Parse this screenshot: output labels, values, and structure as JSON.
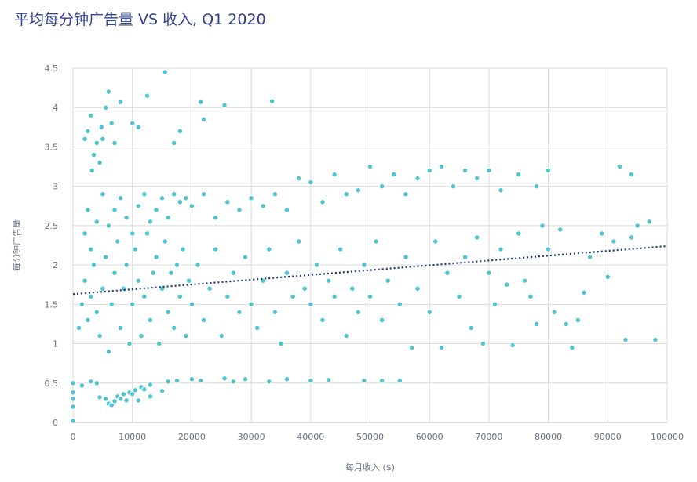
{
  "chart_data": {
    "type": "scatter",
    "title": "平均每分钟广告量 VS 收入, Q1 2020",
    "xlabel": "每月收入 ($)",
    "ylabel": "每分钟广告量",
    "xlim": [
      0,
      100000
    ],
    "ylim": [
      0,
      4.5
    ],
    "xticks": [
      "0",
      "10000",
      "20000",
      "30000",
      "40000",
      "50000",
      "60000",
      "70000",
      "80000",
      "90000",
      "100000"
    ],
    "yticks": [
      "0",
      "0.5",
      "1",
      "1.5",
      "2",
      "2.5",
      "3",
      "3.5",
      "4",
      "4.5"
    ],
    "grid": true,
    "point_color": "#4fc3cf",
    "trend_color": "#1f3a7a",
    "trendline": {
      "type": "linear",
      "x": [
        0,
        100000
      ],
      "y": [
        1.63,
        2.24
      ]
    },
    "points": [
      [
        0,
        0.02
      ],
      [
        0,
        0.2
      ],
      [
        0,
        0.3
      ],
      [
        0,
        0.38
      ],
      [
        0,
        0.5
      ],
      [
        1500,
        0.47
      ],
      [
        3000,
        0.52
      ],
      [
        4000,
        0.5
      ],
      [
        4500,
        0.32
      ],
      [
        5500,
        0.3
      ],
      [
        6000,
        0.24
      ],
      [
        6500,
        0.22
      ],
      [
        7000,
        0.27
      ],
      [
        7500,
        0.33
      ],
      [
        8000,
        0.3
      ],
      [
        8500,
        0.36
      ],
      [
        9000,
        0.28
      ],
      [
        9500,
        0.38
      ],
      [
        10000,
        0.36
      ],
      [
        10500,
        0.41
      ],
      [
        11000,
        0.28
      ],
      [
        11500,
        0.45
      ],
      [
        12000,
        0.42
      ],
      [
        13000,
        0.33
      ],
      [
        13000,
        0.48
      ],
      [
        15000,
        0.4
      ],
      [
        16000,
        0.52
      ],
      [
        17500,
        0.53
      ],
      [
        20000,
        0.55
      ],
      [
        21500,
        0.53
      ],
      [
        25500,
        0.56
      ],
      [
        27000,
        0.52
      ],
      [
        29000,
        0.55
      ],
      [
        33000,
        0.52
      ],
      [
        36000,
        0.55
      ],
      [
        40000,
        0.53
      ],
      [
        43000,
        0.54
      ],
      [
        49000,
        0.53
      ],
      [
        52000,
        0.53
      ],
      [
        55000,
        0.53
      ],
      [
        2000,
        3.6
      ],
      [
        2500,
        3.7
      ],
      [
        3000,
        3.9
      ],
      [
        3500,
        3.4
      ],
      [
        4000,
        3.55
      ],
      [
        4500,
        3.3
      ],
      [
        5000,
        3.6
      ],
      [
        5500,
        4.0
      ],
      [
        6000,
        4.2
      ],
      [
        6500,
        3.8
      ],
      [
        3200,
        3.2
      ],
      [
        4800,
        3.75
      ],
      [
        7000,
        3.55
      ],
      [
        8000,
        4.07
      ],
      [
        10000,
        3.8
      ],
      [
        11000,
        3.75
      ],
      [
        12500,
        4.15
      ],
      [
        15500,
        4.45
      ],
      [
        18000,
        3.7
      ],
      [
        21500,
        4.07
      ],
      [
        25500,
        4.03
      ],
      [
        33500,
        4.08
      ],
      [
        22000,
        3.85
      ],
      [
        17000,
        3.55
      ],
      [
        2000,
        2.4
      ],
      [
        2500,
        2.7
      ],
      [
        3000,
        2.2
      ],
      [
        4000,
        2.55
      ],
      [
        5000,
        2.9
      ],
      [
        6000,
        2.5
      ],
      [
        7000,
        2.7
      ],
      [
        8000,
        2.85
      ],
      [
        9000,
        2.6
      ],
      [
        10000,
        2.4
      ],
      [
        11000,
        2.75
      ],
      [
        12000,
        2.9
      ],
      [
        13000,
        2.55
      ],
      [
        14000,
        2.7
      ],
      [
        15000,
        2.85
      ],
      [
        16000,
        2.6
      ],
      [
        17000,
        2.9
      ],
      [
        18000,
        2.8
      ],
      [
        19000,
        2.85
      ],
      [
        20000,
        2.75
      ],
      [
        22000,
        2.9
      ],
      [
        24000,
        2.6
      ],
      [
        26000,
        2.8
      ],
      [
        28000,
        2.7
      ],
      [
        30000,
        2.85
      ],
      [
        32000,
        2.75
      ],
      [
        34000,
        2.9
      ],
      [
        36000,
        2.7
      ],
      [
        38000,
        3.1
      ],
      [
        40000,
        3.05
      ],
      [
        42000,
        2.8
      ],
      [
        44000,
        3.15
      ],
      [
        46000,
        2.9
      ],
      [
        48000,
        2.95
      ],
      [
        50000,
        3.25
      ],
      [
        52000,
        3.0
      ],
      [
        54000,
        3.15
      ],
      [
        56000,
        2.9
      ],
      [
        58000,
        3.1
      ],
      [
        60000,
        3.2
      ],
      [
        62000,
        3.25
      ],
      [
        64000,
        3.0
      ],
      [
        66000,
        3.2
      ],
      [
        68000,
        3.1
      ],
      [
        70000,
        3.2
      ],
      [
        72000,
        2.95
      ],
      [
        75000,
        3.15
      ],
      [
        78000,
        3.0
      ],
      [
        80000,
        3.2
      ],
      [
        92000,
        3.25
      ],
      [
        94000,
        3.15
      ],
      [
        1000,
        1.2
      ],
      [
        1500,
        1.5
      ],
      [
        2000,
        1.8
      ],
      [
        2500,
        1.3
      ],
      [
        3000,
        1.6
      ],
      [
        3500,
        2.0
      ],
      [
        4000,
        1.4
      ],
      [
        4500,
        1.1
      ],
      [
        5000,
        1.7
      ],
      [
        5500,
        2.1
      ],
      [
        6000,
        0.9
      ],
      [
        6500,
        1.5
      ],
      [
        7000,
        1.9
      ],
      [
        7500,
        2.3
      ],
      [
        8000,
        1.2
      ],
      [
        8500,
        1.7
      ],
      [
        9000,
        2.0
      ],
      [
        9500,
        1.0
      ],
      [
        10000,
        1.5
      ],
      [
        10500,
        2.2
      ],
      [
        11000,
        1.8
      ],
      [
        11500,
        1.1
      ],
      [
        12000,
        1.6
      ],
      [
        12500,
        2.4
      ],
      [
        13000,
        1.3
      ],
      [
        13500,
        1.9
      ],
      [
        14000,
        2.1
      ],
      [
        14500,
        1.0
      ],
      [
        15000,
        1.7
      ],
      [
        15500,
        2.3
      ],
      [
        16000,
        1.4
      ],
      [
        16500,
        1.9
      ],
      [
        17000,
        1.2
      ],
      [
        17500,
        2.0
      ],
      [
        18000,
        1.6
      ],
      [
        18500,
        2.2
      ],
      [
        19000,
        1.1
      ],
      [
        19500,
        1.8
      ],
      [
        20000,
        1.5
      ],
      [
        21000,
        2.0
      ],
      [
        22000,
        1.3
      ],
      [
        23000,
        1.7
      ],
      [
        24000,
        2.2
      ],
      [
        25000,
        1.1
      ],
      [
        26000,
        1.6
      ],
      [
        27000,
        1.9
      ],
      [
        28000,
        1.4
      ],
      [
        29000,
        2.1
      ],
      [
        30000,
        1.5
      ],
      [
        31000,
        1.2
      ],
      [
        32000,
        1.8
      ],
      [
        33000,
        2.2
      ],
      [
        34000,
        1.4
      ],
      [
        35000,
        1.0
      ],
      [
        36000,
        1.9
      ],
      [
        37000,
        1.6
      ],
      [
        38000,
        2.3
      ],
      [
        39000,
        1.7
      ],
      [
        40000,
        1.5
      ],
      [
        41000,
        2.0
      ],
      [
        42000,
        1.3
      ],
      [
        43000,
        1.8
      ],
      [
        44000,
        1.6
      ],
      [
        45000,
        2.2
      ],
      [
        46000,
        1.1
      ],
      [
        47000,
        1.7
      ],
      [
        48000,
        1.4
      ],
      [
        49000,
        2.0
      ],
      [
        50000,
        1.6
      ],
      [
        51000,
        2.3
      ],
      [
        52000,
        1.3
      ],
      [
        53000,
        1.8
      ],
      [
        55000,
        1.5
      ],
      [
        56000,
        2.1
      ],
      [
        57000,
        0.95
      ],
      [
        58000,
        1.7
      ],
      [
        60000,
        1.4
      ],
      [
        61000,
        2.3
      ],
      [
        62000,
        0.95
      ],
      [
        63000,
        1.9
      ],
      [
        65000,
        1.6
      ],
      [
        66000,
        2.1
      ],
      [
        67000,
        1.2
      ],
      [
        68000,
        2.35
      ],
      [
        69000,
        1.0
      ],
      [
        70000,
        1.9
      ],
      [
        71000,
        1.5
      ],
      [
        72000,
        2.2
      ],
      [
        73000,
        1.75
      ],
      [
        74000,
        0.98
      ],
      [
        75000,
        2.4
      ],
      [
        76000,
        1.8
      ],
      [
        77000,
        1.6
      ],
      [
        78000,
        1.25
      ],
      [
        79000,
        2.5
      ],
      [
        80000,
        2.2
      ],
      [
        81000,
        1.4
      ],
      [
        82000,
        2.45
      ],
      [
        83000,
        1.25
      ],
      [
        84000,
        0.95
      ],
      [
        85000,
        1.3
      ],
      [
        86000,
        1.65
      ],
      [
        87000,
        2.1
      ],
      [
        89000,
        2.4
      ],
      [
        90000,
        1.85
      ],
      [
        91000,
        2.3
      ],
      [
        93000,
        1.05
      ],
      [
        94000,
        2.35
      ],
      [
        95000,
        2.5
      ],
      [
        97000,
        2.55
      ],
      [
        98000,
        1.05
      ]
    ]
  }
}
